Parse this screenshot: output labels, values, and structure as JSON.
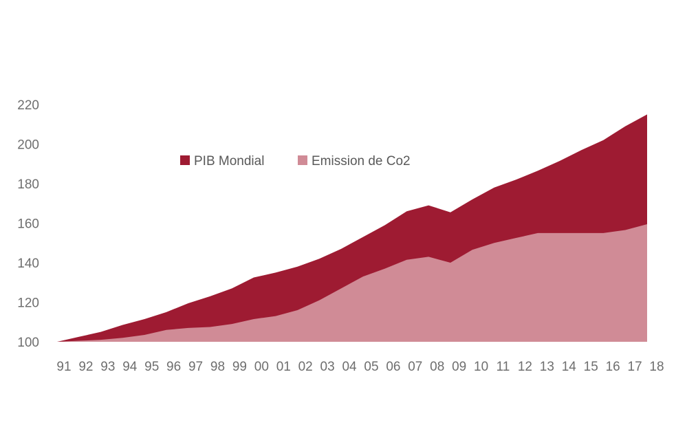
{
  "chart_data": {
    "type": "area",
    "categories": [
      "91",
      "92",
      "93",
      "94",
      "95",
      "96",
      "97",
      "98",
      "99",
      "00",
      "01",
      "02",
      "03",
      "04",
      "05",
      "06",
      "07",
      "08",
      "09",
      "10",
      "11",
      "12",
      "13",
      "14",
      "15",
      "16",
      "17",
      "18"
    ],
    "series": [
      {
        "name": "PIB Mondial",
        "color": "#9e1b32",
        "values": [
          100,
          102.5,
          105,
          108.5,
          111.5,
          115,
          119.5,
          123,
          127,
          132.5,
          135,
          138,
          142,
          147,
          153,
          159,
          166,
          169,
          165.5,
          172,
          178,
          182,
          186.5,
          191.5,
          197,
          202,
          209,
          215
        ]
      },
      {
        "name": "Emission de Co2",
        "color": "#d08b96",
        "values": [
          100,
          100.5,
          101,
          102,
          103.5,
          106,
          107,
          107.5,
          109,
          111.5,
          113,
          116,
          121,
          127,
          133,
          137,
          141.5,
          143,
          140,
          146.5,
          150,
          152.5,
          155,
          155,
          155,
          155,
          156.5,
          159.5
        ]
      }
    ],
    "yticks": [
      100,
      120,
      140,
      160,
      180,
      200,
      220
    ],
    "ylim": [
      100,
      220
    ],
    "legend_position": "top-center",
    "grid": false
  }
}
